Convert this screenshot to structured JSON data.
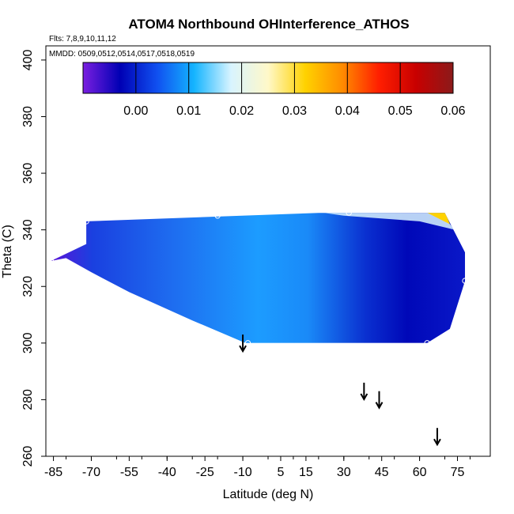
{
  "chart_data": {
    "type": "heatmap",
    "title": "ATOM4 Northbound OHInterference_ATHOS",
    "flights_note": "Flts: 7,8,9,10,11,12",
    "dates_note": "MMDD: 0509,0512,0514,0517,0518,0519",
    "xlabel": "Latitude (deg N)",
    "ylabel": "Theta (C)",
    "xlim": [
      -88,
      88
    ],
    "ylim": [
      260,
      405
    ],
    "x_ticks": [
      -85,
      -70,
      -55,
      -40,
      -25,
      -10,
      5,
      15,
      30,
      45,
      60,
      75
    ],
    "x_tick_labels": [
      "-85",
      "-70",
      "-55",
      "-40",
      "-25",
      "-10",
      "5",
      "15",
      "30",
      "45",
      "60",
      "75"
    ],
    "y_ticks": [
      260,
      280,
      300,
      320,
      340,
      360,
      380,
      400
    ],
    "y_tick_labels": [
      "260",
      "280",
      "300",
      "320",
      "340",
      "360",
      "380",
      "400"
    ],
    "colorbar": {
      "min": -0.01,
      "max": 0.06,
      "ticks": [
        0.0,
        0.01,
        0.02,
        0.03,
        0.04,
        0.05,
        0.06
      ],
      "tick_labels": [
        "0.00",
        "0.01",
        "0.02",
        "0.03",
        "0.04",
        "0.05",
        "0.06"
      ],
      "stops": [
        "#7a1fe0",
        "#0000b4",
        "#1050f0",
        "#14b4ff",
        "#d8f4ff",
        "#fff8c8",
        "#ffd200",
        "#ff8c00",
        "#ff1e00",
        "#c80000",
        "#8b1a1a"
      ]
    },
    "field_region_lat": [
      -86,
      -72,
      -72,
      20,
      70,
      78,
      78,
      72,
      63,
      -9,
      -30,
      -55,
      -70,
      -80,
      -86
    ],
    "field_region_theta": [
      329,
      335,
      343,
      346,
      346,
      332,
      322,
      305,
      300,
      300,
      308,
      318,
      325,
      330,
      329
    ],
    "profile_points": [
      {
        "lat": -86,
        "theta": 329
      },
      {
        "lat": -72,
        "theta": 343
      },
      {
        "lat": -20,
        "theta": 345
      },
      {
        "lat": 32,
        "theta": 346
      },
      {
        "lat": 78,
        "theta": 322
      },
      {
        "lat": 77,
        "theta": 311
      },
      {
        "lat": 63,
        "theta": 300
      },
      {
        "lat": -8,
        "theta": 300
      }
    ],
    "arrows": [
      {
        "lat": -10,
        "theta": 303
      },
      {
        "lat": 38,
        "theta": 286
      },
      {
        "lat": 44,
        "theta": 283
      },
      {
        "lat": 67,
        "theta": 270
      }
    ]
  }
}
